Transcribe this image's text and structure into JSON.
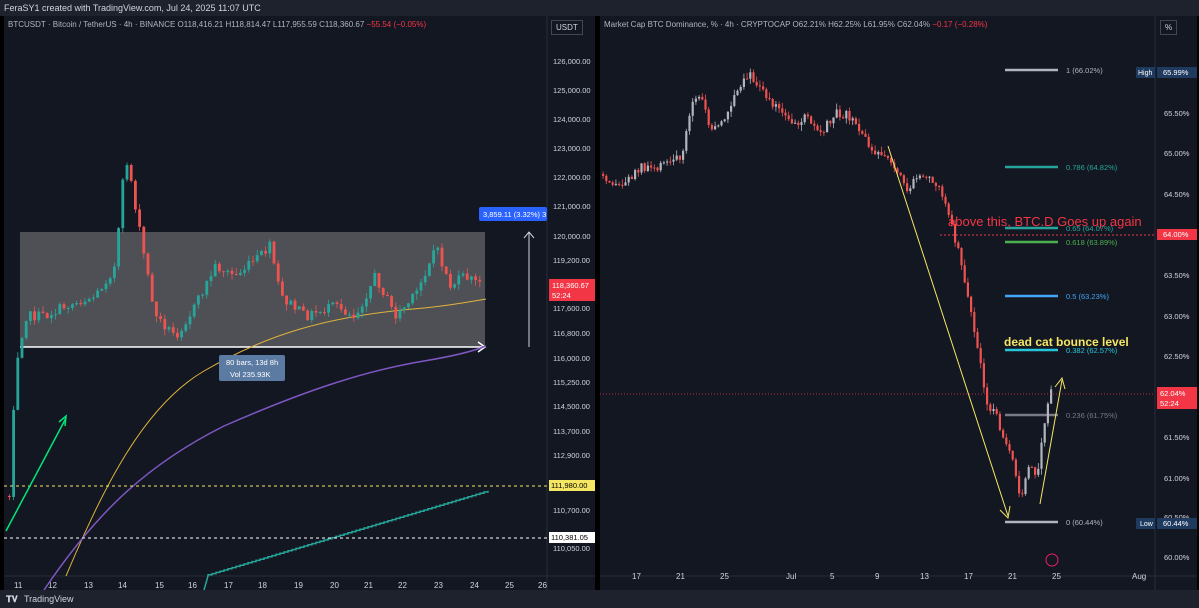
{
  "header": {
    "text": "FeraSY1 created with TradingView.com, Jul 24, 2025 11:07 UTC"
  },
  "footer": {
    "brand": "TradingView",
    "logo": "tradingview-logo-icon"
  },
  "left_chart": {
    "legend": {
      "symbol": "BTCUSDT · Bitcoin / TetherUS · 4h · BINANCE",
      "o": "O118,416.21",
      "h": "H118,814.47",
      "l": "L117,955.59",
      "c": "C118,360.67",
      "chg": "−55.54 (−0.05%)"
    },
    "unit": "USDT",
    "price_ticks": [
      "126,000.00",
      "125,000.00",
      "124,000.00",
      "123,000.00",
      "122,000.00",
      "121,000.00",
      "120,000.00",
      "119,200.00",
      "118,400.00",
      "117,600.00",
      "116,800.00",
      "116,000.00",
      "115,250.00",
      "114,500.00",
      "113,700.00",
      "112,900.00",
      "111,980.00",
      "110,700.00",
      "110,381.05",
      "110,050.00"
    ],
    "x_ticks": [
      "11",
      "12",
      "13",
      "14",
      "15",
      "16",
      "17",
      "18",
      "19",
      "20",
      "21",
      "22",
      "23",
      "24",
      "25",
      "26"
    ],
    "current_price": "118,360.67",
    "countdown": "52:24",
    "measure_top": "3,859.11 (3.32%) 3",
    "measure_bottom": [
      "80 bars, 13d 8h",
      "Vol 235.93K"
    ],
    "yellow_line_labels": [
      "111,980.00"
    ],
    "white_line_label": "110,381.05",
    "colors": {
      "up": "#26a69a",
      "down": "#ef5350",
      "ma_yellow": "#e0b43a",
      "ma_purple": "#7e57c2",
      "ma_green": "#26a69a",
      "range_box": "#808080"
    }
  },
  "right_chart": {
    "legend": {
      "symbol": "Market Cap BTC Dominance, % · 4h · CRYPTOCAP",
      "o": "O62.21%",
      "h": "H62.25%",
      "l": "L61.95%",
      "c": "C62.04%",
      "chg": "−0.17 (−0.28%)"
    },
    "unit": "%",
    "price_ticks": [
      "65.99%",
      "65.50%",
      "65.00%",
      "64.50%",
      "64.00%",
      "63.50%",
      "63.00%",
      "62.50%",
      "62.04%",
      "61.50%",
      "61.00%",
      "60.50%",
      "60.44%",
      "60.00%"
    ],
    "x_ticks": [
      "17",
      "21",
      "25",
      "Jul",
      "5",
      "9",
      "13",
      "17",
      "21",
      "25",
      "Aug"
    ],
    "high_label": "High",
    "high_value": "65.99%",
    "low_label": "Low",
    "low_value": "60.44%",
    "current_price": "62.04%",
    "countdown": "52:24",
    "red_level": "64.00%",
    "fib_levels": [
      {
        "label": "1 (66.02%)",
        "color": "#b2b5be"
      },
      {
        "label": "0.786 (64.82%)",
        "color": "#26a69a"
      },
      {
        "label": "0.65 (64.07%)",
        "color": "#26a69a"
      },
      {
        "label": "0.618 (63.89%)",
        "color": "#4caf50"
      },
      {
        "label": "0.5 (63.23%)",
        "color": "#42a5f5"
      },
      {
        "label": "0.382 (62.57%)",
        "color": "#26c6da"
      },
      {
        "label": "0.236 (61.75%)",
        "color": "#787b86"
      },
      {
        "label": "0 (60.44%)",
        "color": "#b2b5be"
      }
    ],
    "annotations": {
      "red_text": "above this, BTC.D Goes up again",
      "yellow_text": "dead cat bounce level"
    },
    "colors": {
      "up": "#b2b5be",
      "down": "#ef5350",
      "arrow": "#f5e663"
    }
  }
}
